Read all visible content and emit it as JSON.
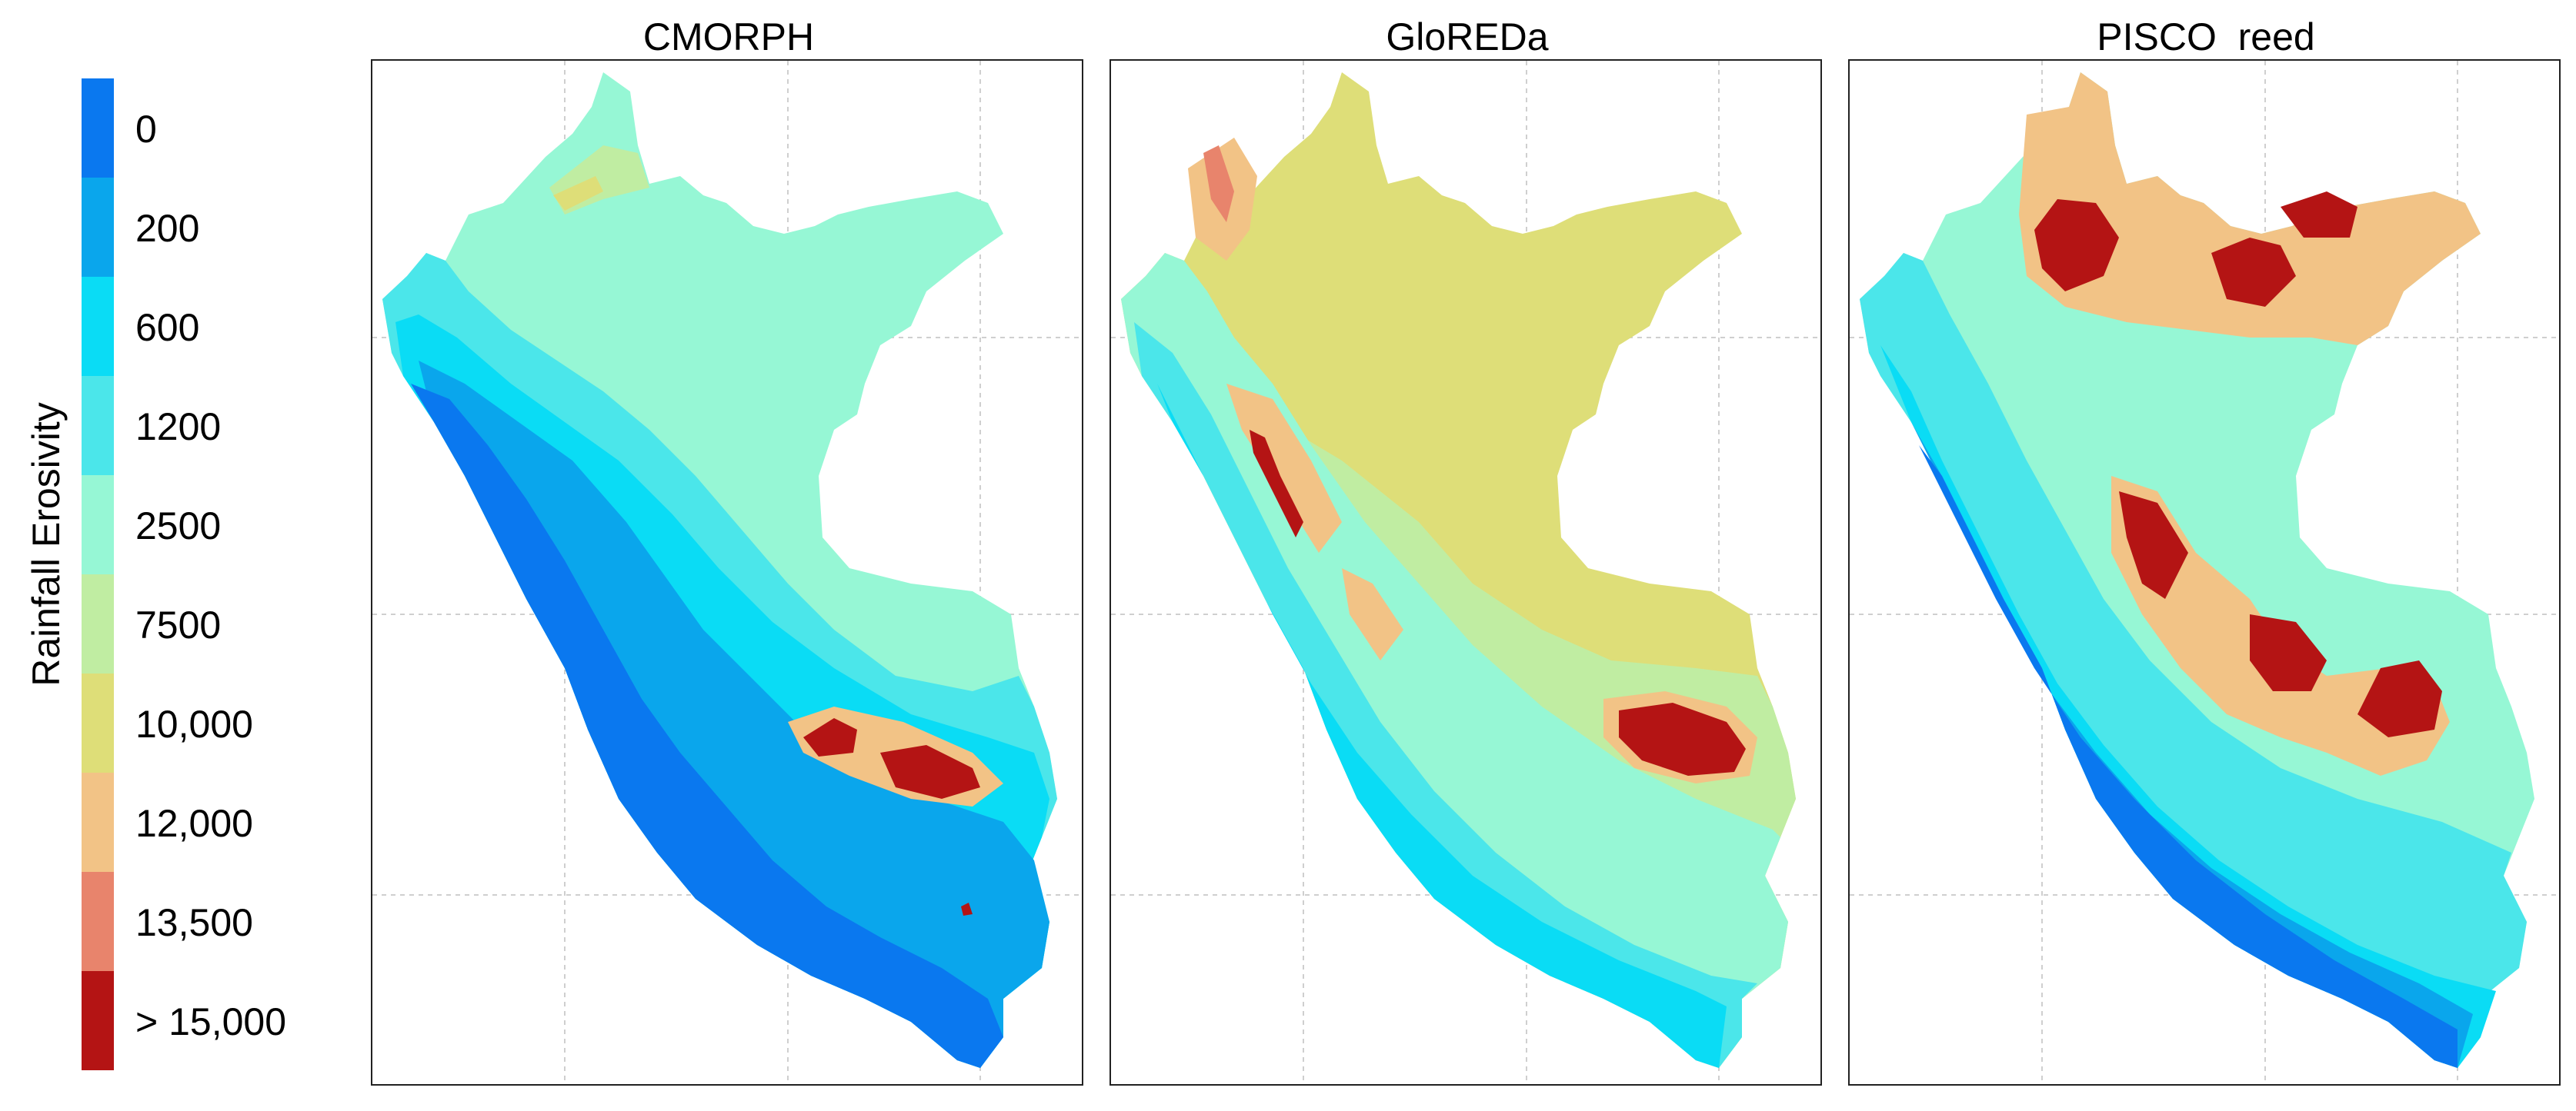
{
  "legend": {
    "title": "Rainfall Erosivity",
    "classes": [
      {
        "label": "0",
        "color": "#0a78ef"
      },
      {
        "label": "200",
        "color": "#0aa6ec"
      },
      {
        "label": "600",
        "color": "#0adcf5"
      },
      {
        "label": "1200",
        "color": "#4be6ea"
      },
      {
        "label": "2500",
        "color": "#96f7d5"
      },
      {
        "label": "7500",
        "color": "#c0eda2"
      },
      {
        "label": "10,000",
        "color": "#dede78"
      },
      {
        "label": "12,000",
        "color": "#f2c386"
      },
      {
        "label": "13,500",
        "color": "#e8846c"
      },
      {
        "label": "> 15,000",
        "color": "#b41414"
      }
    ]
  },
  "panels": [
    {
      "title": "CMORPH",
      "base_class": "2500"
    },
    {
      "title": "GloREDa",
      "base_class": "10,000"
    },
    {
      "title": "PISCO  reed",
      "base_class": "2500"
    }
  ]
}
